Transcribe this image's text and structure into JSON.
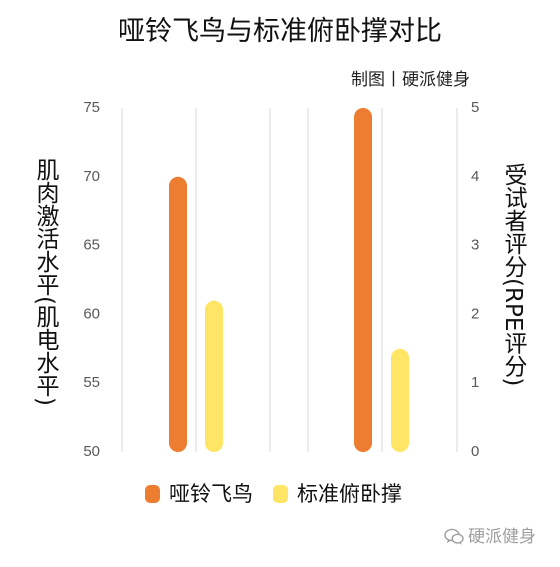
{
  "chart_data": {
    "type": "bar",
    "title": "哑铃飞鸟与标准俯卧撑对比",
    "subtitle": "制图丨硬派健身",
    "legend_position": "bottom",
    "grid": true,
    "series": [
      {
        "name": "哑铃飞鸟",
        "color": "#ED7D31"
      },
      {
        "name": "标准俯卧撑",
        "color": "#FFE566"
      }
    ],
    "panels": [
      {
        "axis_side": "left",
        "ylabel": "肌肉激活水平(肌电水平)",
        "ylim": [
          50,
          75
        ],
        "yticks": [
          50,
          55,
          60,
          65,
          70,
          75
        ],
        "values": [
          70,
          61
        ]
      },
      {
        "axis_side": "right",
        "ylabel": "受试者评分(RPE评分)",
        "ylim": [
          0,
          5
        ],
        "yticks": [
          0,
          1,
          2,
          3,
          4,
          5
        ],
        "values": [
          5,
          1.5
        ]
      }
    ]
  },
  "watermark": {
    "icon": "wechat-icon",
    "text": "硬派健身"
  },
  "colors": {
    "gridline": "#D9D9D9",
    "tick_text": "#595959",
    "watermark": "#9E9E9E"
  }
}
